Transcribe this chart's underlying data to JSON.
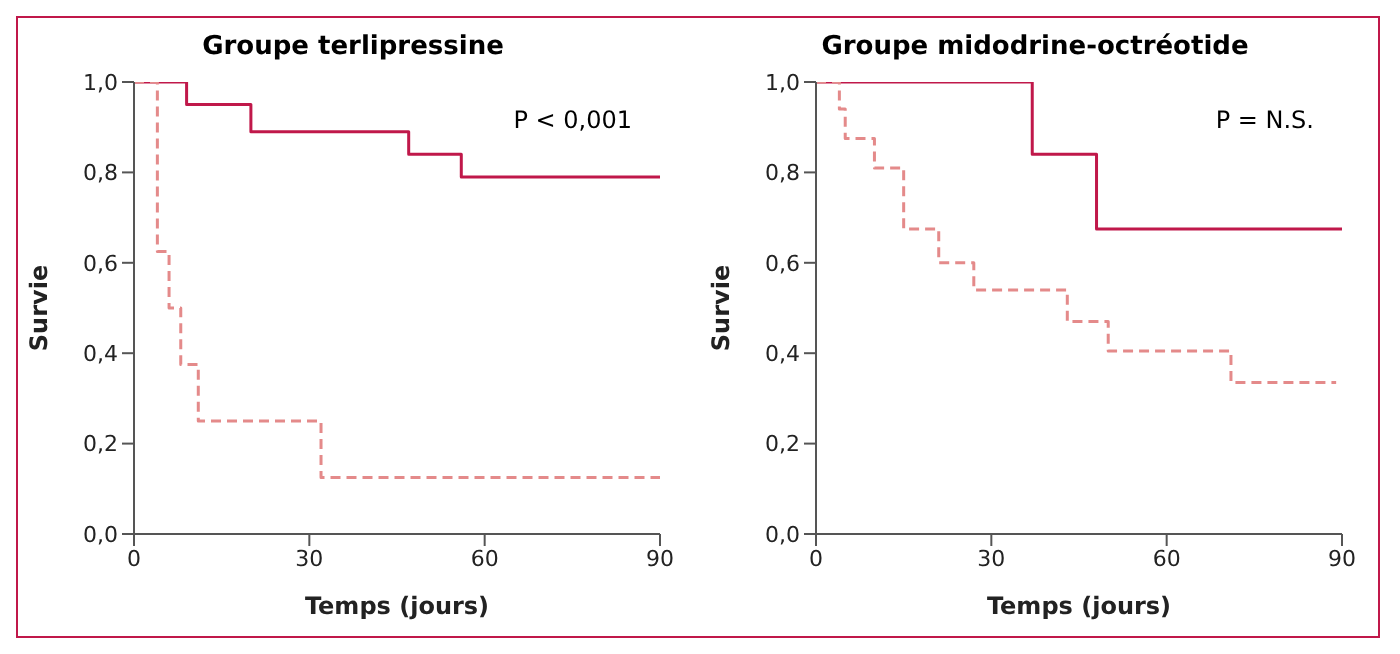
{
  "chart_data": [
    {
      "type": "step",
      "title": "Groupe terlipressine",
      "xlabel": "Temps (jours)",
      "ylabel": "Survie",
      "annotations": [
        "P < 0,001"
      ],
      "xlim": [
        0,
        90
      ],
      "xticks": [
        0,
        30,
        60,
        90
      ],
      "ylim": [
        0,
        1
      ],
      "yticks": [
        {
          "value": 0,
          "label": "0,0"
        },
        {
          "value": 0.2,
          "label": "0,2"
        },
        {
          "value": 0.4,
          "label": "0,4"
        },
        {
          "value": 0.6,
          "label": "0,6"
        },
        {
          "value": 0.8,
          "label": "0,8"
        },
        {
          "value": 1,
          "label": "1,0"
        }
      ],
      "grid": false,
      "legend": false,
      "series": [
        {
          "color": "#c0184a",
          "line_style": "solid",
          "x": [
            0,
            9,
            20,
            47,
            56,
            90
          ],
          "values": [
            1,
            0.95,
            0.89,
            0.84,
            0.79,
            0.79
          ]
        },
        {
          "color": "#e48a8a",
          "line_style": "dashed",
          "x": [
            0,
            4,
            6,
            8,
            11,
            32,
            90
          ],
          "values": [
            1,
            0.625,
            0.5,
            0.375,
            0.25,
            0.125,
            0.125
          ]
        }
      ]
    },
    {
      "type": "step",
      "title": "Groupe midodrine-octréotide",
      "xlabel": "Temps (jours)",
      "ylabel": "Survie",
      "annotations": [
        "P = N.S."
      ],
      "xlim": [
        0,
        90
      ],
      "xticks": [
        0,
        30,
        60,
        90
      ],
      "ylim": [
        0,
        1
      ],
      "yticks": [
        {
          "value": 0,
          "label": "0,0"
        },
        {
          "value": 0.2,
          "label": "0,2"
        },
        {
          "value": 0.4,
          "label": "0,4"
        },
        {
          "value": 0.6,
          "label": "0,6"
        },
        {
          "value": 0.8,
          "label": "0,8"
        },
        {
          "value": 1,
          "label": "1,0"
        }
      ],
      "grid": false,
      "legend": false,
      "series": [
        {
          "color": "#c0184a",
          "line_style": "solid",
          "x": [
            0,
            37,
            48,
            90
          ],
          "values": [
            1,
            0.84,
            0.675,
            0.675
          ]
        },
        {
          "color": "#e48a8a",
          "line_style": "dashed",
          "x": [
            0,
            4,
            5,
            10,
            15,
            21,
            27,
            43,
            50,
            71,
            89
          ],
          "values": [
            1,
            0.94,
            0.875,
            0.81,
            0.675,
            0.6,
            0.54,
            0.47,
            0.405,
            0.335,
            0.335
          ]
        }
      ]
    }
  ]
}
